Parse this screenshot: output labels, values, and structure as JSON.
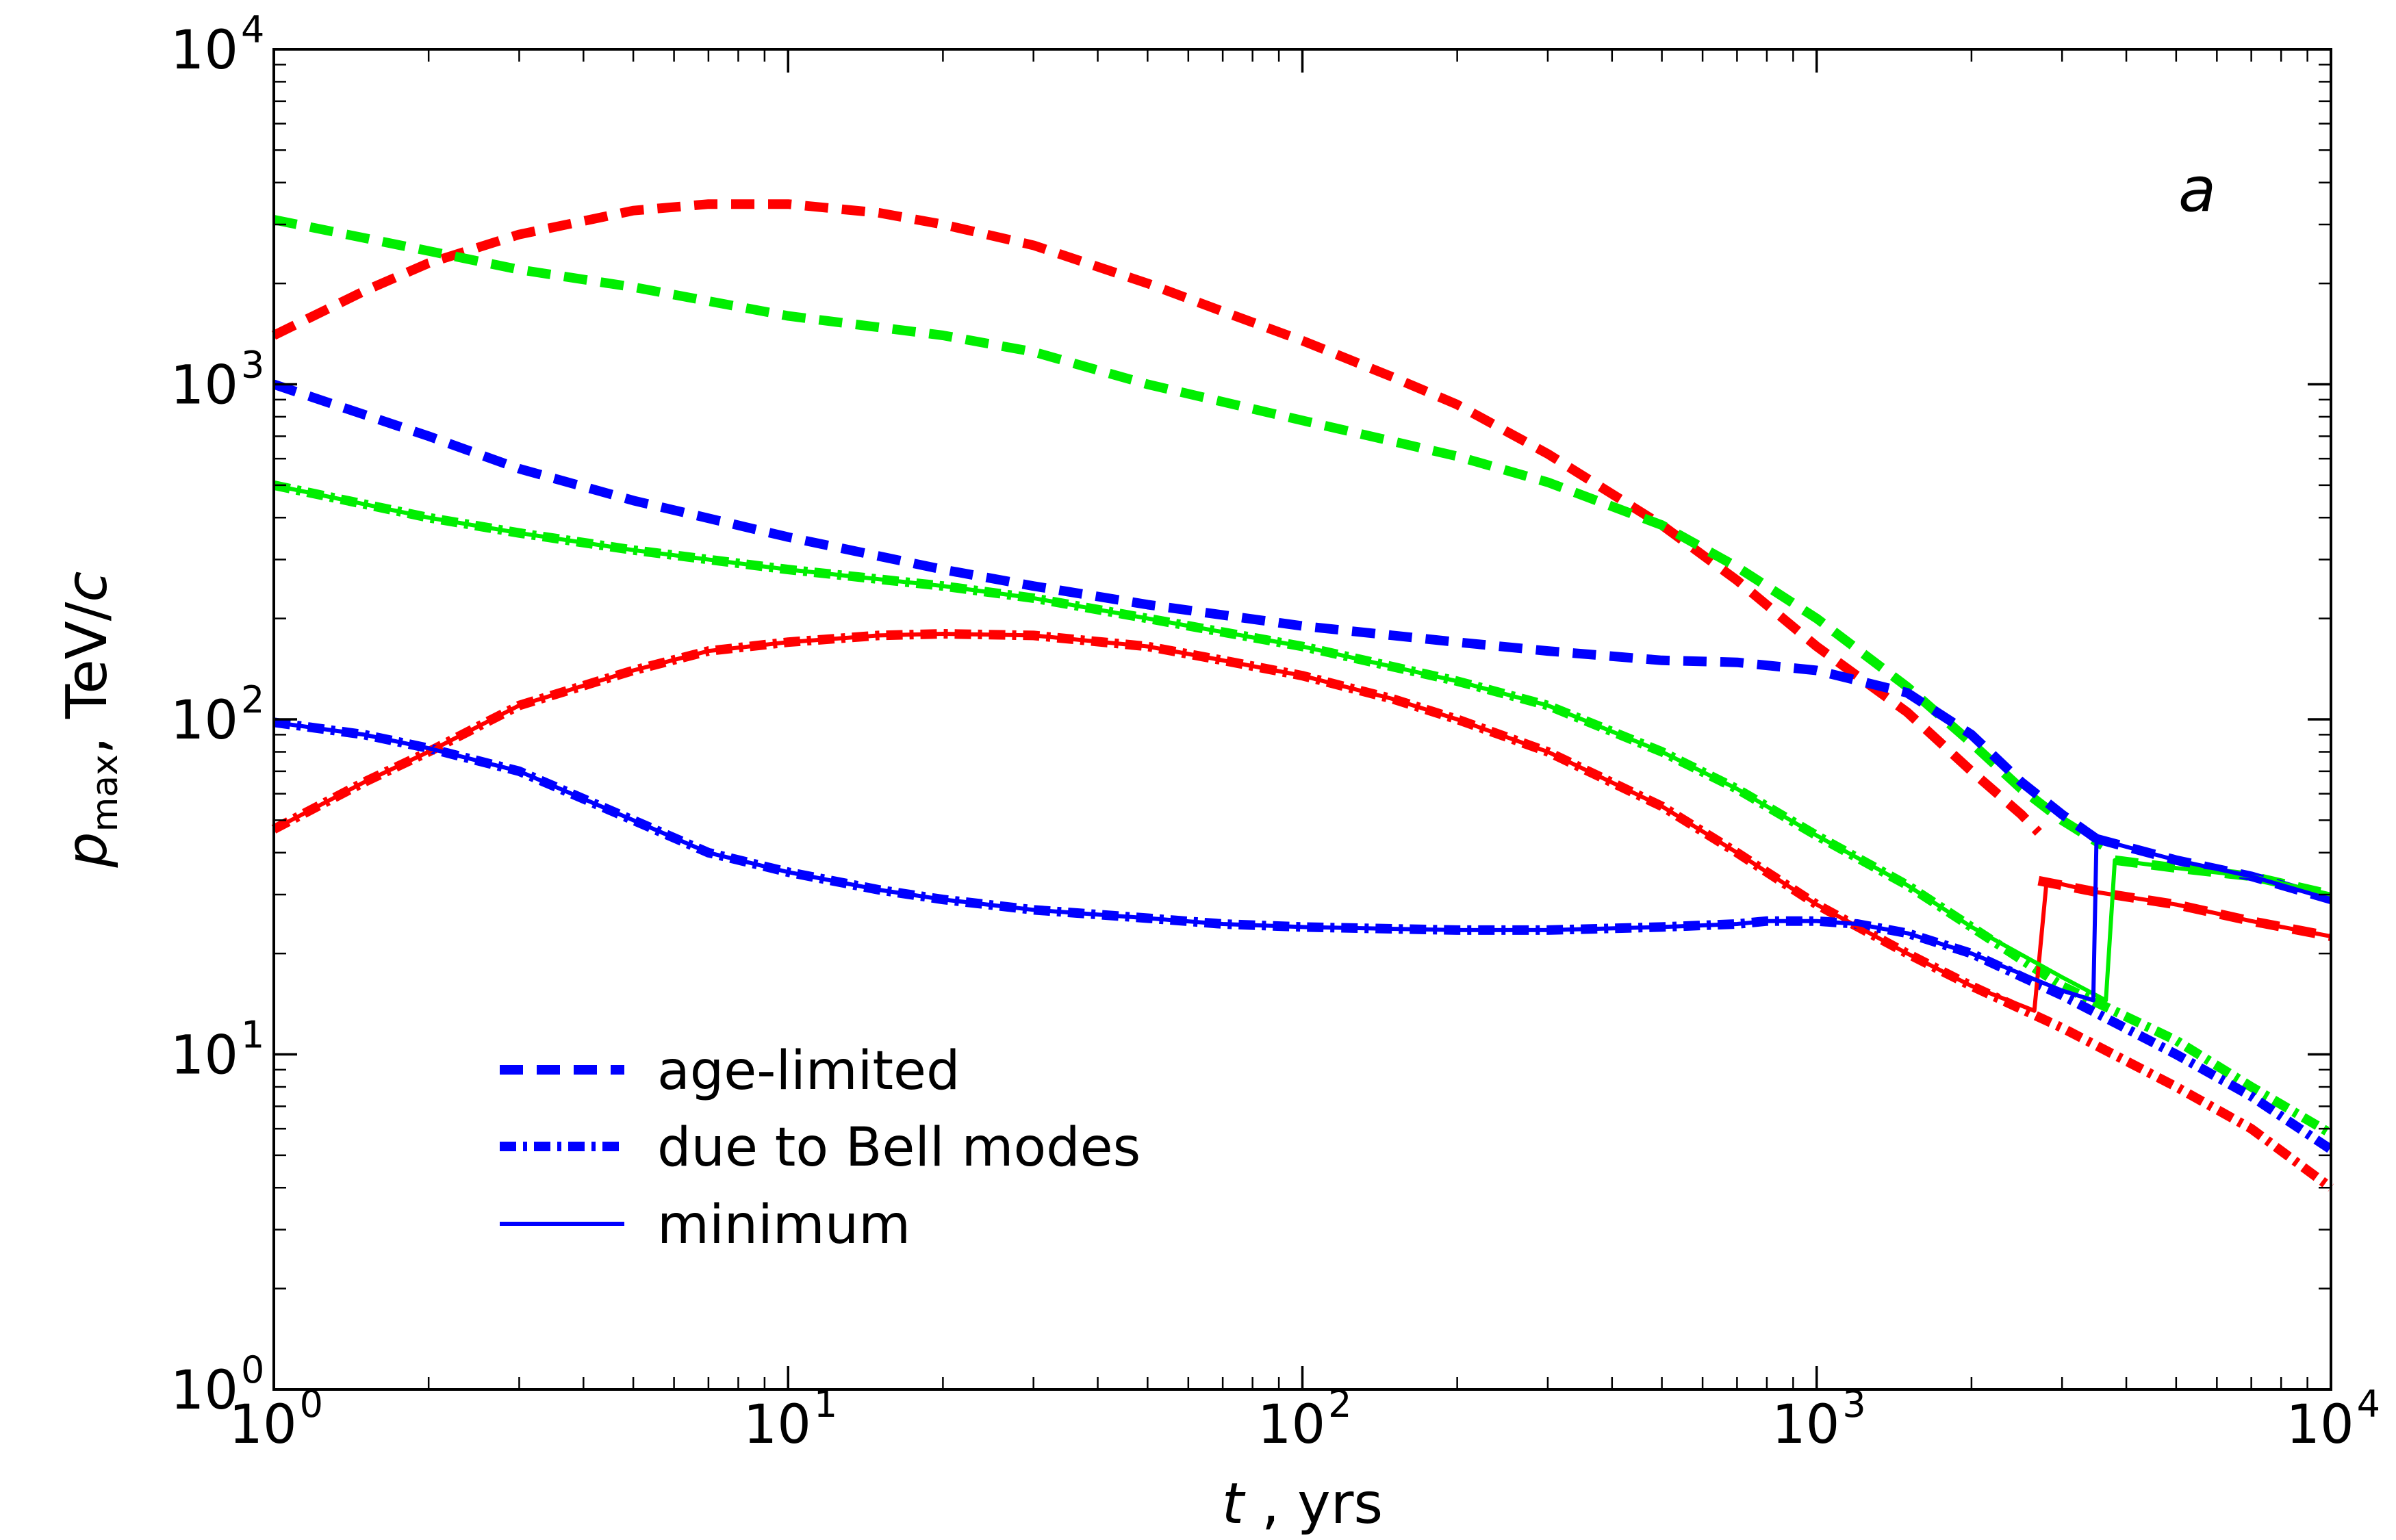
{
  "chart_data": {
    "type": "line",
    "panel_label": "a",
    "xlabel": {
      "italic": "t",
      "text": " , yrs"
    },
    "ylabel": {
      "symbol": "p",
      "subscript": "max",
      "unit": ", TeV/",
      "unit_italic": "c"
    },
    "xscale": "log",
    "yscale": "log",
    "xlim": [
      1,
      10000
    ],
    "ylim": [
      1,
      10000
    ],
    "x_ticks": [
      {
        "value": 1,
        "base": "10",
        "exp": "0"
      },
      {
        "value": 10,
        "base": "10",
        "exp": "1"
      },
      {
        "value": 100,
        "base": "10",
        "exp": "2"
      },
      {
        "value": 1000,
        "base": "10",
        "exp": "3"
      },
      {
        "value": 10000,
        "base": "10",
        "exp": "4"
      }
    ],
    "y_ticks": [
      {
        "value": 1,
        "base": "10",
        "exp": "0"
      },
      {
        "value": 10,
        "base": "10",
        "exp": "1"
      },
      {
        "value": 100,
        "base": "10",
        "exp": "2"
      },
      {
        "value": 1000,
        "base": "10",
        "exp": "3"
      },
      {
        "value": 10000,
        "base": "10",
        "exp": "4"
      }
    ],
    "legend": {
      "position": "lower-left",
      "entries": [
        {
          "label": "age-limited",
          "style": "dashed",
          "color": "#0000ff"
        },
        {
          "label": "due to Bell modes",
          "style": "dashdot",
          "color": "#0000ff"
        },
        {
          "label": "minimum",
          "style": "solid",
          "color": "#0000ff"
        }
      ]
    },
    "series": [
      {
        "name": "red age-limited",
        "color": "#ff0000",
        "style": "dashed",
        "x": [
          1,
          1.5,
          2,
          3,
          5,
          7,
          10,
          15,
          20,
          30,
          50,
          70,
          100,
          150,
          200,
          300,
          500,
          700,
          1000,
          1500,
          2000,
          2500,
          2700
        ],
        "y": [
          1400,
          1900,
          2300,
          2800,
          3300,
          3450,
          3450,
          3250,
          3000,
          2600,
          2000,
          1650,
          1350,
          1050,
          870,
          620,
          380,
          260,
          165,
          105,
          70,
          52,
          46
        ]
      },
      {
        "name": "red age-limited late",
        "color": "#ff0000",
        "style": "dashed",
        "x": [
          2700,
          3500,
          5000,
          7000,
          10000
        ],
        "y": [
          33,
          30.5,
          28,
          25,
          22.5
        ]
      },
      {
        "name": "green age-limited",
        "color": "#00ee00",
        "style": "dashed",
        "x": [
          1,
          2,
          3,
          5,
          10,
          20,
          30,
          50,
          100,
          200,
          300,
          500,
          700,
          1000,
          1500,
          2000,
          2500,
          3000,
          3600
        ],
        "y": [
          3100,
          2500,
          2200,
          1950,
          1600,
          1400,
          1250,
          1000,
          780,
          610,
          510,
          380,
          285,
          200,
          125,
          85,
          62,
          50,
          42
        ]
      },
      {
        "name": "green age-limited late",
        "color": "#00ee00",
        "style": "dashed",
        "x": [
          3800,
          5000,
          7000,
          10000
        ],
        "y": [
          38,
          36,
          34,
          30
        ]
      },
      {
        "name": "blue age-limited",
        "color": "#0000ff",
        "style": "dashed",
        "x": [
          1,
          2,
          3,
          5,
          10,
          20,
          30,
          50,
          100,
          200,
          300,
          500,
          700,
          1000,
          1500,
          2000,
          2500,
          3000,
          3500
        ],
        "y": [
          1000,
          700,
          560,
          450,
          350,
          280,
          250,
          220,
          190,
          170,
          160,
          150,
          148,
          140,
          120,
          90,
          65,
          52,
          44
        ]
      },
      {
        "name": "blue age-limited late",
        "color": "#0000ff",
        "style": "dashed",
        "x": [
          3500,
          5000,
          7000,
          10000
        ],
        "y": [
          44,
          38,
          34,
          29
        ]
      },
      {
        "name": "red Bell modes",
        "color": "#ff0000",
        "style": "dashdot",
        "x": [
          1,
          1.5,
          2,
          3,
          5,
          7,
          10,
          15,
          20,
          30,
          50,
          70,
          100,
          150,
          200,
          300,
          500,
          700,
          1000,
          1500,
          2000,
          3000,
          5000,
          7000,
          10000
        ],
        "y": [
          47,
          65,
          80,
          110,
          140,
          160,
          170,
          178,
          180,
          178,
          165,
          150,
          135,
          115,
          100,
          80,
          55,
          40,
          28,
          20,
          16,
          12,
          8,
          6,
          4
        ]
      },
      {
        "name": "green Bell modes",
        "color": "#00ee00",
        "style": "dashdot",
        "x": [
          1,
          2,
          3,
          5,
          10,
          20,
          30,
          50,
          100,
          200,
          300,
          500,
          700,
          1000,
          1500,
          2000,
          3000,
          5000,
          7000,
          10000
        ],
        "y": [
          500,
          400,
          360,
          320,
          280,
          250,
          230,
          200,
          165,
          130,
          110,
          80,
          62,
          45,
          32,
          24,
          16,
          11,
          8,
          5.8
        ]
      },
      {
        "name": "blue Bell modes",
        "color": "#0000ff",
        "style": "dashdot",
        "x": [
          1,
          1.5,
          2,
          3,
          5,
          7,
          10,
          15,
          20,
          30,
          50,
          70,
          100,
          200,
          300,
          500,
          700,
          800,
          1000,
          1200,
          1500,
          2000,
          3000,
          5000,
          7000,
          10000
        ],
        "y": [
          98,
          90,
          82,
          70,
          50,
          40,
          35,
          31,
          29,
          27,
          25.5,
          24.5,
          24,
          23.5,
          23.5,
          24,
          24.5,
          25,
          25,
          24.5,
          23,
          20,
          15,
          10,
          7.5,
          5.2
        ]
      },
      {
        "name": "red minimum",
        "color": "#ff0000",
        "style": "solid",
        "x": [
          1,
          1.5,
          2,
          3,
          5,
          7,
          10,
          15,
          20,
          30,
          50,
          70,
          100,
          150,
          200,
          300,
          500,
          700,
          1000,
          1500,
          2000,
          2650,
          2650,
          2800,
          3500,
          5000,
          7000,
          10000
        ],
        "y": [
          47,
          65,
          80,
          110,
          140,
          160,
          170,
          178,
          180,
          178,
          165,
          150,
          135,
          115,
          100,
          80,
          55,
          40,
          28,
          20,
          16,
          13.5,
          13.5,
          33,
          30.5,
          28,
          25,
          22.5
        ]
      },
      {
        "name": "green minimum",
        "color": "#00ee00",
        "style": "solid",
        "x": [
          1,
          2,
          3,
          5,
          10,
          20,
          30,
          50,
          100,
          200,
          300,
          500,
          700,
          1000,
          1500,
          2000,
          3000,
          3650,
          3800,
          5000,
          7000,
          10000
        ],
        "y": [
          500,
          400,
          360,
          320,
          280,
          250,
          230,
          200,
          165,
          130,
          110,
          80,
          62,
          45,
          32,
          24,
          17,
          14.5,
          38,
          36,
          34,
          30
        ]
      },
      {
        "name": "blue minimum",
        "color": "#0000ff",
        "style": "solid",
        "x": [
          1,
          1.5,
          2,
          3,
          5,
          7,
          10,
          15,
          20,
          30,
          50,
          70,
          100,
          200,
          300,
          500,
          700,
          800,
          1000,
          1200,
          1500,
          2000,
          3000,
          3450,
          3500,
          5000,
          7000,
          10000
        ],
        "y": [
          98,
          90,
          82,
          70,
          50,
          40,
          35,
          31,
          29,
          27,
          25.5,
          24.5,
          24,
          23.5,
          23.5,
          24,
          24.5,
          25,
          25,
          24.5,
          23,
          20,
          15.5,
          14.5,
          44,
          38,
          34,
          29
        ]
      }
    ]
  }
}
